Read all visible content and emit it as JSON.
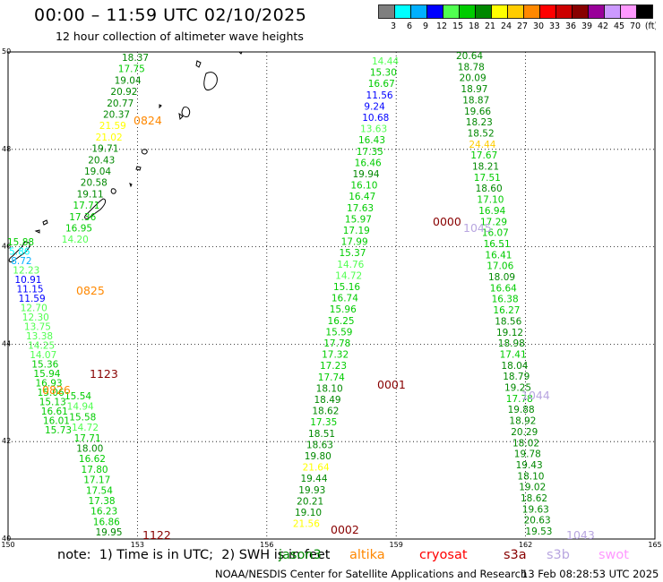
{
  "title": "00:00 – 11:59 UTC 02/10/2025",
  "subtitle": "12 hour collection of altimeter wave heights",
  "colorbar": {
    "colors": [
      "#7f7f7f",
      "#00ffff",
      "#00b0ff",
      "#0000ff",
      "#50ff50",
      "#00cc00",
      "#008800",
      "#ffff00",
      "#ffcc00",
      "#ff8800",
      "#ff0000",
      "#cc0000",
      "#880000",
      "#990099",
      "#cc99ff",
      "#ff99ff",
      "#000000"
    ],
    "labels": [
      "3",
      "6",
      "9",
      "12",
      "15",
      "18",
      "21",
      "24",
      "27",
      "30",
      "33",
      "36",
      "39",
      "42",
      "45",
      "70",
      "(ft)"
    ]
  },
  "map": {
    "x_axis_labels": [
      "150",
      "153",
      "156",
      "159",
      "162",
      "165"
    ],
    "y_axis_labels": [
      "50",
      "48",
      "46",
      "44",
      "42",
      "40"
    ]
  },
  "tracks": [
    {
      "pass_label": "0824",
      "pass_label_color": "#ff8800",
      "heights": [
        "18.37",
        "17.75",
        "19.04",
        "20.92",
        "20.77",
        "20.37",
        "21.59",
        "21.02",
        "19.71",
        "20.43",
        "19.04",
        "20.58",
        "19.11",
        "17.71",
        "17.36",
        "16.95",
        "14.20"
      ]
    },
    {
      "pass_label": "0825",
      "pass_label_color": "#ff8800",
      "heights": [
        "15.88",
        "5.86",
        "8.72",
        "12.23",
        "10.91",
        "11.15",
        "11.59",
        "12.70",
        "12.30",
        "13.75",
        "13.38",
        "14.25",
        "14.07",
        "15.36",
        "15.94",
        "16.93",
        "15.06",
        "15.13",
        "16.61",
        "16.01",
        "15.73"
      ]
    },
    {
      "pass_label": "1123",
      "pass_label_color": "#880000",
      "heights": [
        "15.54",
        "14.94",
        "15.58",
        "14.72",
        "17.71",
        "18.00",
        "16.62",
        "17.80",
        "17.17",
        "17.54",
        "17.38",
        "16.23",
        "16.86",
        "19.95"
      ]
    },
    {
      "pass_label": "0826",
      "pass_label_color": "#ff8800",
      "heights": []
    },
    {
      "pass_label": "1122",
      "pass_label_color": "#880000",
      "heights": []
    },
    {
      "pass_label": "0001",
      "pass_label_color": "#880000",
      "heights": [
        "14.44",
        "15.30",
        "16.67",
        "11.56",
        "9.24",
        "10.68",
        "13.63",
        "16.43",
        "17.35",
        "16.46",
        "19.94",
        "16.10",
        "16.47",
        "17.63",
        "15.97",
        "17.19",
        "17.99",
        "15.37",
        "14.76",
        "14.72",
        "15.16",
        "16.74",
        "15.96",
        "16.25",
        "15.59",
        "17.78",
        "17.32",
        "17.23",
        "17.74",
        "18.10",
        "18.49",
        "18.62",
        "17.35",
        "18.51",
        "18.63",
        "19.80",
        "21.64",
        "19.44",
        "19.93",
        "20.21",
        "19.10",
        "21.56"
      ]
    },
    {
      "pass_label": "0002",
      "pass_label_color": "#880000",
      "heights": []
    },
    {
      "pass_label": "0000",
      "pass_label_color": "#880000",
      "heights": [
        "20.64",
        "18.78",
        "20.09",
        "18.97",
        "18.87",
        "19.66",
        "18.23",
        "18.52",
        "24.44",
        "17.67",
        "18.21",
        "17.51",
        "18.60",
        "17.10",
        "16.94",
        "17.29",
        "16.07",
        "16.51",
        "16.41",
        "17.06",
        "18.09",
        "16.64",
        "16.38",
        "16.27",
        "18.56",
        "19.12",
        "18.98",
        "17.41",
        "18.04",
        "18.79",
        "19.25",
        "17.78",
        "19.88",
        "18.92",
        "20.29",
        "18.02",
        "19.78",
        "19.43",
        "18.10",
        "19.02",
        "18.62",
        "19.63",
        "20.63",
        "19.53"
      ]
    },
    {
      "pass_label": "1045",
      "pass_label_color": "#b8a6e0",
      "heights": []
    },
    {
      "pass_label": "1044",
      "pass_label_color": "#b8a6e0",
      "heights": []
    },
    {
      "pass_label": "1043",
      "pass_label_color": "#b8a6e0",
      "heights": []
    }
  ],
  "footer": {
    "note": "note:  1) Time is in UTC;  2) SWH is in feet",
    "satellites": [
      {
        "name": "jason3",
        "color": "#008800"
      },
      {
        "name": "altika",
        "color": "#ff8800"
      },
      {
        "name": "cryosat",
        "color": "#ff0000"
      },
      {
        "name": "s3a",
        "color": "#880000"
      },
      {
        "name": "s3b",
        "color": "#b8a6e0"
      },
      {
        "name": "swot",
        "color": "#ff99ff"
      }
    ],
    "credit": "NOAA/NESDIS Center for Satellite Applications and Research",
    "timestamp": "13 Feb 08:28:53 UTC 2025"
  }
}
